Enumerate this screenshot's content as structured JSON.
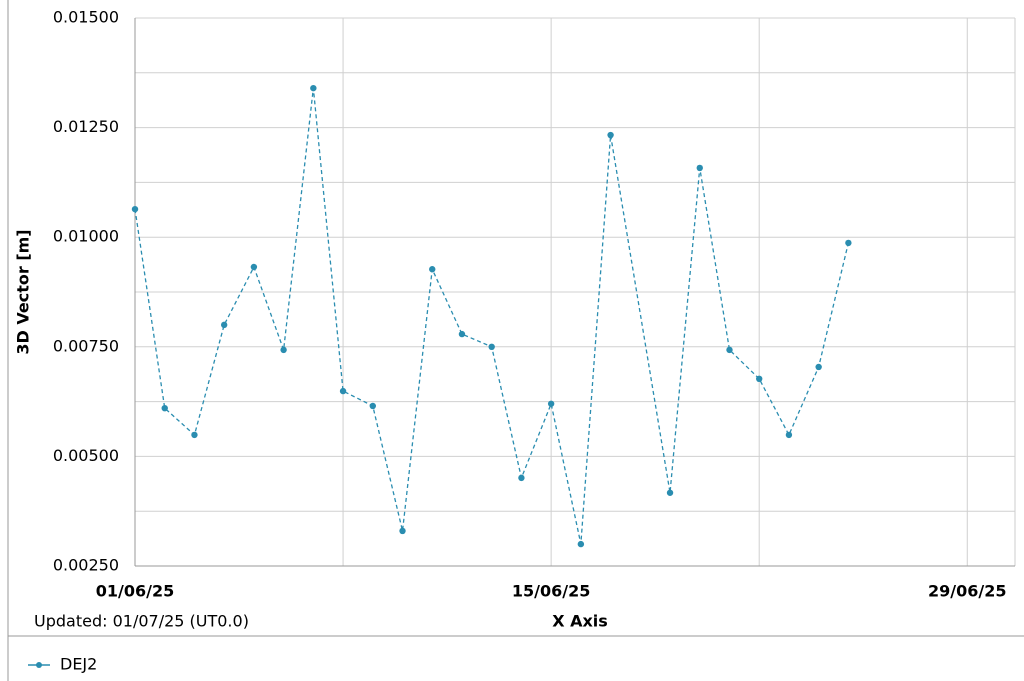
{
  "chart_data": {
    "type": "line",
    "y_label": "3D Vector [m]",
    "x_label": "X Axis",
    "note": "Updated: 01/07/25 (UT0.0)",
    "x": [
      "2025-06-01",
      "2025-06-02",
      "2025-06-03",
      "2025-06-04",
      "2025-06-05",
      "2025-06-06",
      "2025-06-07",
      "2025-06-08",
      "2025-06-09",
      "2025-06-10",
      "2025-06-11",
      "2025-06-12",
      "2025-06-13",
      "2025-06-14",
      "2025-06-15",
      "2025-06-16",
      "2025-06-17",
      "2025-06-19",
      "2025-06-20",
      "2025-06-21",
      "2025-06-22",
      "2025-06-23",
      "2025-06-24",
      "2025-06-25"
    ],
    "series": [
      {
        "name": "DEJ2",
        "color": "#2a8db0",
        "dashed": true,
        "values": [
          0.01064,
          0.0061,
          0.00549,
          0.008,
          0.00932,
          0.00743,
          0.0134,
          0.00649,
          0.00615,
          0.0033,
          0.00927,
          0.00779,
          0.0075,
          0.00451,
          0.0062,
          0.003,
          0.01233,
          0.00417,
          0.01158,
          0.00743,
          0.00677,
          0.00549,
          0.00704,
          0.00987
        ]
      }
    ],
    "xlim": [
      "2025-06-01",
      "2025-06-30"
    ],
    "xticks": [
      {
        "value": "2025-06-01",
        "label": "01/06/25"
      },
      {
        "value": "2025-06-15",
        "label": "15/06/25"
      },
      {
        "value": "2025-06-29",
        "label": "29/06/25"
      }
    ],
    "xminor": [
      "2025-06-08",
      "2025-06-22"
    ],
    "ylim": [
      0.0025,
      0.015
    ],
    "yticks": [
      {
        "value": 0.0025,
        "label": "0.00250"
      },
      {
        "value": 0.005,
        "label": "0.00500"
      },
      {
        "value": 0.0075,
        "label": "0.00750"
      },
      {
        "value": 0.01,
        "label": "0.01000"
      },
      {
        "value": 0.0125,
        "label": "0.01250"
      },
      {
        "value": 0.015,
        "label": "0.01500"
      }
    ],
    "yminor": [
      0.00375,
      0.00625,
      0.00875,
      0.01125,
      0.01375
    ],
    "grid": true,
    "legend": "bottom-left"
  }
}
